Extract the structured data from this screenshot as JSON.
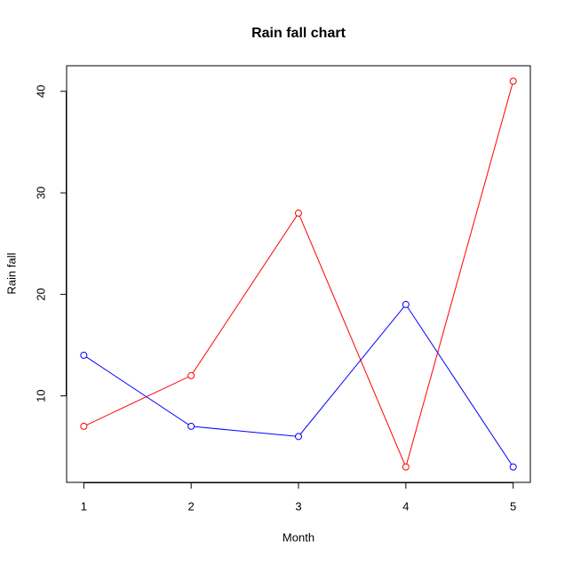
{
  "chart_data": {
    "type": "line",
    "title": "Rain fall chart",
    "x_label": "Month",
    "y_label": "Rain fall",
    "x": [
      1,
      2,
      3,
      4,
      5
    ],
    "series": [
      {
        "color": "#ff0000",
        "values": [
          7,
          12,
          28,
          3,
          41
        ]
      },
      {
        "color": "#0000ff",
        "values": [
          14,
          7,
          6,
          19,
          3
        ]
      }
    ],
    "xlim": [
      0.84,
      5.16
    ],
    "xticks": [
      1,
      2,
      3,
      4,
      5
    ],
    "ylim": [
      1.48,
      42.52
    ],
    "yticks": [
      10,
      20,
      30,
      40
    ],
    "markers": true
  }
}
